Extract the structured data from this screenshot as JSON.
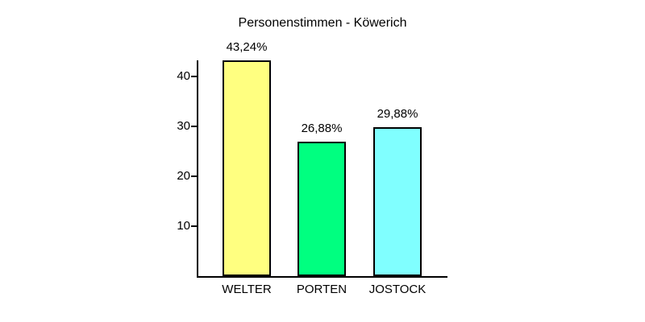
{
  "window": {
    "background": "#ffffff"
  },
  "chart_data": {
    "type": "bar",
    "title": "Personenstimmen - Köwerich",
    "categories": [
      "WELTER",
      "PORTEN",
      "JOSTOCK"
    ],
    "values": [
      43.24,
      26.88,
      29.88
    ],
    "value_labels": [
      "43,24%",
      "26,88%",
      "29,88%"
    ],
    "bar_colors": [
      "#ffff80",
      "#00ff80",
      "#80ffff"
    ],
    "yticks": [
      10,
      20,
      30,
      40
    ],
    "ylim": [
      0,
      43.24
    ],
    "xlabel": "",
    "ylabel": "",
    "grid": false,
    "legend": "none",
    "axis_color": "#000000",
    "text_color": "#000000",
    "background": "#ffffff"
  }
}
